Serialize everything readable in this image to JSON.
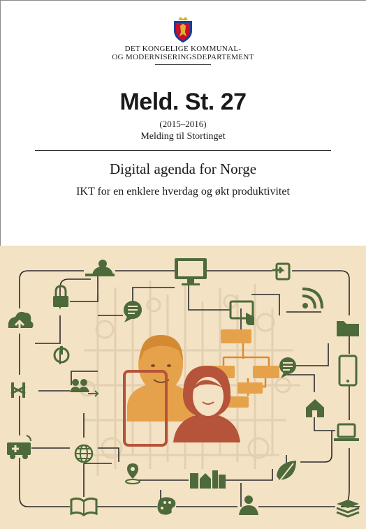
{
  "ministry": {
    "line1": "DET KONGELIGE KOMMUNAL-",
    "line2": "OG MODERNISERINGSDEPARTEMENT"
  },
  "report": {
    "number": "Meld. St. 27",
    "years": "(2015–2016)",
    "type": "Melding til Stortinget"
  },
  "title": "Digital agenda for Norge",
  "subtitle": "IKT for en enklere hverdag og økt produktivitet",
  "colors": {
    "cover_bg": "#f3e2c4",
    "icon_green": "#4d6a3a",
    "line_dark": "#2b2b2b",
    "orange": "#e6a24a",
    "red_brown": "#b5543a",
    "crest_blue": "#1c3f94",
    "crest_red": "#c8102e",
    "crest_gold": "#e1b12c"
  },
  "icons": [
    "user-desk-icon",
    "monitor-icon",
    "sign-in-icon",
    "lock-icon",
    "chat-bubble-icon",
    "rss-icon",
    "cloud-upload-icon",
    "touch-screen-icon",
    "folder-icon",
    "power-icon",
    "flowchart-icon",
    "speech-bubble-icon",
    "tablet-icon",
    "fence-icon",
    "group-icon",
    "house-icon",
    "ambulance-icon",
    "globe-icon",
    "laptop-icon",
    "location-icon",
    "city-icon",
    "leaf-icon",
    "book-icon",
    "palette-icon",
    "person-icon",
    "stack-icon"
  ]
}
